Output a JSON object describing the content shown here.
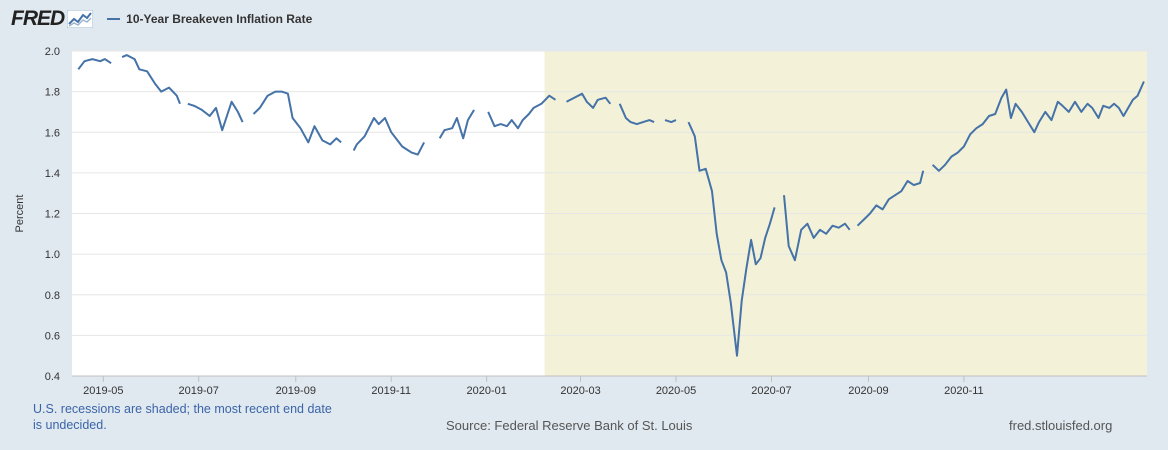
{
  "brand": {
    "logo_text": "FRED",
    "logo_icon": "fred-chart-icon"
  },
  "chart_data": {
    "type": "line",
    "title": "",
    "series": [
      {
        "name": "10-Year Breakeven Inflation Rate",
        "color": "#4572a7",
        "points": [
          [
            "2019-04-15",
            1.91
          ],
          [
            "2019-04-19",
            1.95
          ],
          [
            "2019-04-24",
            1.96
          ],
          [
            "2019-04-29",
            1.95
          ],
          [
            "2019-05-02",
            1.96
          ],
          [
            "2019-05-06",
            1.94
          ],
          [
            "2019-05-07",
            null
          ],
          [
            "2019-05-13",
            1.97
          ],
          [
            "2019-05-16",
            1.98
          ],
          [
            "2019-05-21",
            1.96
          ],
          [
            "2019-05-24",
            1.91
          ],
          [
            "2019-05-29",
            1.9
          ],
          [
            "2019-06-03",
            1.84
          ],
          [
            "2019-06-07",
            1.8
          ],
          [
            "2019-06-12",
            1.82
          ],
          [
            "2019-06-17",
            1.78
          ],
          [
            "2019-06-19",
            1.74
          ],
          [
            "2019-06-20",
            null
          ],
          [
            "2019-06-24",
            1.74
          ],
          [
            "2019-06-28",
            1.73
          ],
          [
            "2019-07-03",
            1.71
          ],
          [
            "2019-07-08",
            1.68
          ],
          [
            "2019-07-12",
            1.72
          ],
          [
            "2019-07-16",
            1.61
          ],
          [
            "2019-07-22",
            1.75
          ],
          [
            "2019-07-26",
            1.7
          ],
          [
            "2019-07-29",
            1.65
          ],
          [
            "2019-07-31",
            null
          ],
          [
            "2019-08-05",
            1.69
          ],
          [
            "2019-08-09",
            1.72
          ],
          [
            "2019-08-14",
            1.78
          ],
          [
            "2019-08-19",
            1.8
          ],
          [
            "2019-08-23",
            1.8
          ],
          [
            "2019-08-27",
            1.79
          ],
          [
            "2019-08-30",
            1.67
          ],
          [
            "2019-09-04",
            1.62
          ],
          [
            "2019-09-09",
            1.55
          ],
          [
            "2019-09-13",
            1.63
          ],
          [
            "2019-09-18",
            1.56
          ],
          [
            "2019-09-23",
            1.54
          ],
          [
            "2019-09-27",
            1.57
          ],
          [
            "2019-09-30",
            1.55
          ],
          [
            "2019-10-03",
            null
          ],
          [
            "2019-10-08",
            1.51
          ],
          [
            "2019-10-10",
            1.54
          ],
          [
            "2019-10-15",
            1.58
          ],
          [
            "2019-10-21",
            1.67
          ],
          [
            "2019-10-24",
            1.64
          ],
          [
            "2019-10-28",
            1.67
          ],
          [
            "2019-11-01",
            1.6
          ],
          [
            "2019-11-05",
            1.56
          ],
          [
            "2019-11-08",
            1.53
          ],
          [
            "2019-11-12",
            1.51
          ],
          [
            "2019-11-14",
            1.5
          ],
          [
            "2019-11-18",
            1.49
          ],
          [
            "2019-11-22",
            1.55
          ],
          [
            "2019-11-26",
            null
          ],
          [
            "2019-12-02",
            1.57
          ],
          [
            "2019-12-05",
            1.61
          ],
          [
            "2019-12-10",
            1.62
          ],
          [
            "2019-12-13",
            1.67
          ],
          [
            "2019-12-17",
            1.57
          ],
          [
            "2019-12-20",
            1.66
          ],
          [
            "2019-12-24",
            1.71
          ],
          [
            "2019-12-26",
            null
          ],
          [
            "2020-01-02",
            1.7
          ],
          [
            "2020-01-06",
            1.63
          ],
          [
            "2020-01-10",
            1.64
          ],
          [
            "2020-01-14",
            1.63
          ],
          [
            "2020-01-17",
            1.66
          ],
          [
            "2020-01-21",
            1.62
          ],
          [
            "2020-01-24",
            1.66
          ],
          [
            "2020-01-28",
            1.69
          ],
          [
            "2020-01-31",
            1.72
          ],
          [
            "2020-02-05",
            1.74
          ],
          [
            "2020-02-10",
            1.78
          ],
          [
            "2020-02-14",
            1.76
          ],
          [
            "2020-02-17",
            null
          ],
          [
            "2020-02-21",
            1.75
          ],
          [
            "2020-02-26",
            1.77
          ],
          [
            "2020-03-02",
            1.79
          ],
          [
            "2020-03-05",
            1.75
          ],
          [
            "2020-03-09",
            1.72
          ],
          [
            "2020-03-12",
            1.76
          ],
          [
            "2020-03-17",
            1.77
          ],
          [
            "2020-03-20",
            1.74
          ],
          [
            "2020-03-22",
            null
          ],
          [
            "2020-03-26",
            1.74
          ],
          [
            "2020-03-30",
            1.67
          ],
          [
            "2020-04-02",
            1.65
          ],
          [
            "2020-04-06",
            1.64
          ],
          [
            "2020-04-10",
            1.65
          ],
          [
            "2020-04-14",
            1.66
          ],
          [
            "2020-04-17",
            1.65
          ],
          [
            "2020-04-20",
            null
          ],
          [
            "2020-04-24",
            1.66
          ],
          [
            "2020-04-28",
            1.65
          ],
          [
            "2020-05-01",
            1.66
          ],
          [
            "2020-05-04",
            null
          ],
          [
            "2020-05-09",
            1.65
          ],
          [
            "2020-05-13",
            1.58
          ],
          [
            "2020-05-16",
            1.41
          ],
          [
            "2020-05-20",
            1.42
          ],
          [
            "2020-05-24",
            1.31
          ],
          [
            "2020-05-27",
            1.1
          ],
          [
            "2020-05-30",
            0.97
          ],
          [
            "2020-06-02",
            0.91
          ],
          [
            "2020-06-05",
            0.76
          ],
          [
            "2020-06-07",
            0.63
          ],
          [
            "2020-06-09",
            0.5
          ],
          [
            "2020-06-12",
            0.77
          ],
          [
            "2020-06-15",
            0.93
          ],
          [
            "2020-06-18",
            1.07
          ],
          [
            "2020-06-21",
            0.95
          ],
          [
            "2020-06-24",
            0.98
          ],
          [
            "2020-06-27",
            1.08
          ],
          [
            "2020-06-30",
            1.15
          ],
          [
            "2020-07-03",
            1.23
          ],
          [
            "2020-07-04",
            null
          ],
          [
            "2020-07-09",
            1.29
          ],
          [
            "2020-07-12",
            1.04
          ],
          [
            "2020-07-16",
            0.97
          ],
          [
            "2020-07-20",
            1.12
          ],
          [
            "2020-07-24",
            1.15
          ],
          [
            "2020-07-28",
            1.08
          ],
          [
            "2020-08-01",
            1.12
          ],
          [
            "2020-08-05",
            1.1
          ],
          [
            "2020-08-09",
            1.14
          ],
          [
            "2020-08-13",
            1.13
          ],
          [
            "2020-08-17",
            1.15
          ],
          [
            "2020-08-20",
            1.12
          ],
          [
            "2020-08-21",
            null
          ],
          [
            "2020-08-25",
            1.14
          ],
          [
            "2020-08-29",
            1.17
          ],
          [
            "2020-09-02",
            1.2
          ],
          [
            "2020-09-06",
            1.24
          ],
          [
            "2020-09-10",
            1.22
          ],
          [
            "2020-09-14",
            1.27
          ],
          [
            "2020-09-18",
            1.29
          ],
          [
            "2020-09-22",
            1.31
          ],
          [
            "2020-09-26",
            1.36
          ],
          [
            "2020-09-30",
            1.34
          ],
          [
            "2020-10-04",
            1.35
          ],
          [
            "2020-10-06",
            1.41
          ],
          [
            "2020-10-07",
            null
          ],
          [
            "2020-10-12",
            1.44
          ],
          [
            "2020-10-16",
            1.41
          ],
          [
            "2020-10-20",
            1.44
          ],
          [
            "2020-10-24",
            1.48
          ],
          [
            "2020-10-28",
            1.5
          ],
          [
            "2020-11-01",
            1.53
          ],
          [
            "2020-11-05",
            1.59
          ],
          [
            "2020-11-09",
            1.62
          ],
          [
            "2020-11-13",
            1.64
          ],
          [
            "2020-11-17",
            1.68
          ],
          [
            "2020-11-21",
            1.69
          ],
          [
            "2020-11-25",
            1.77
          ],
          [
            "2020-11-28",
            1.81
          ],
          [
            "2020-12-01",
            1.67
          ],
          [
            "2020-12-04",
            1.74
          ],
          [
            "2020-12-08",
            1.7
          ],
          [
            "2020-12-12",
            1.65
          ],
          [
            "2020-12-16",
            1.6
          ],
          [
            "2020-12-19",
            1.65
          ],
          [
            "2020-12-23",
            1.7
          ],
          [
            "2020-12-27",
            1.66
          ],
          [
            "2020-12-31",
            1.75
          ],
          [
            "2021-01-03",
            1.73
          ],
          [
            "2021-01-07",
            1.7
          ],
          [
            "2021-01-11",
            1.75
          ],
          [
            "2021-01-15",
            1.7
          ],
          [
            "2021-01-19",
            1.74
          ],
          [
            "2021-01-22",
            1.72
          ],
          [
            "2021-01-26",
            1.67
          ],
          [
            "2021-01-29",
            1.73
          ],
          [
            "2021-02-02",
            1.72
          ],
          [
            "2021-02-05",
            1.74
          ],
          [
            "2021-02-08",
            1.72
          ],
          [
            "2021-02-11",
            1.68
          ],
          [
            "2021-02-14",
            1.72
          ],
          [
            "2021-02-17",
            1.76
          ],
          [
            "2021-02-20",
            1.78
          ],
          [
            "2021-02-24",
            1.85
          ]
        ]
      }
    ],
    "x_type": "date",
    "xlim": [
      "2019-04-11",
      "2021-02-26"
    ],
    "ylim": [
      0.4,
      2.0
    ],
    "ylabel": "Percent",
    "xlabel": "",
    "x_ticks": [
      "2019-05",
      "2019-07",
      "2019-09",
      "2019-11",
      "2020-01",
      "2020-03",
      "2020-05",
      "2020-07",
      "2020-09",
      "2020-11"
    ],
    "y_ticks": [
      "0.4",
      "0.6",
      "0.8",
      "1.0",
      "1.2",
      "1.4",
      "1.6",
      "1.8",
      "2.0"
    ],
    "grid": "horizontal",
    "legend": "top-left",
    "recession_shading": {
      "start": "2020-02-07",
      "end": "2021-02-26",
      "color": "#f3f2d9"
    }
  },
  "footer": {
    "note": "U.S. recessions are shaded; the most recent end date is undecided.",
    "source": "Source: Federal Reserve Bank of St. Louis",
    "site": "fred.stlouisfed.org"
  }
}
